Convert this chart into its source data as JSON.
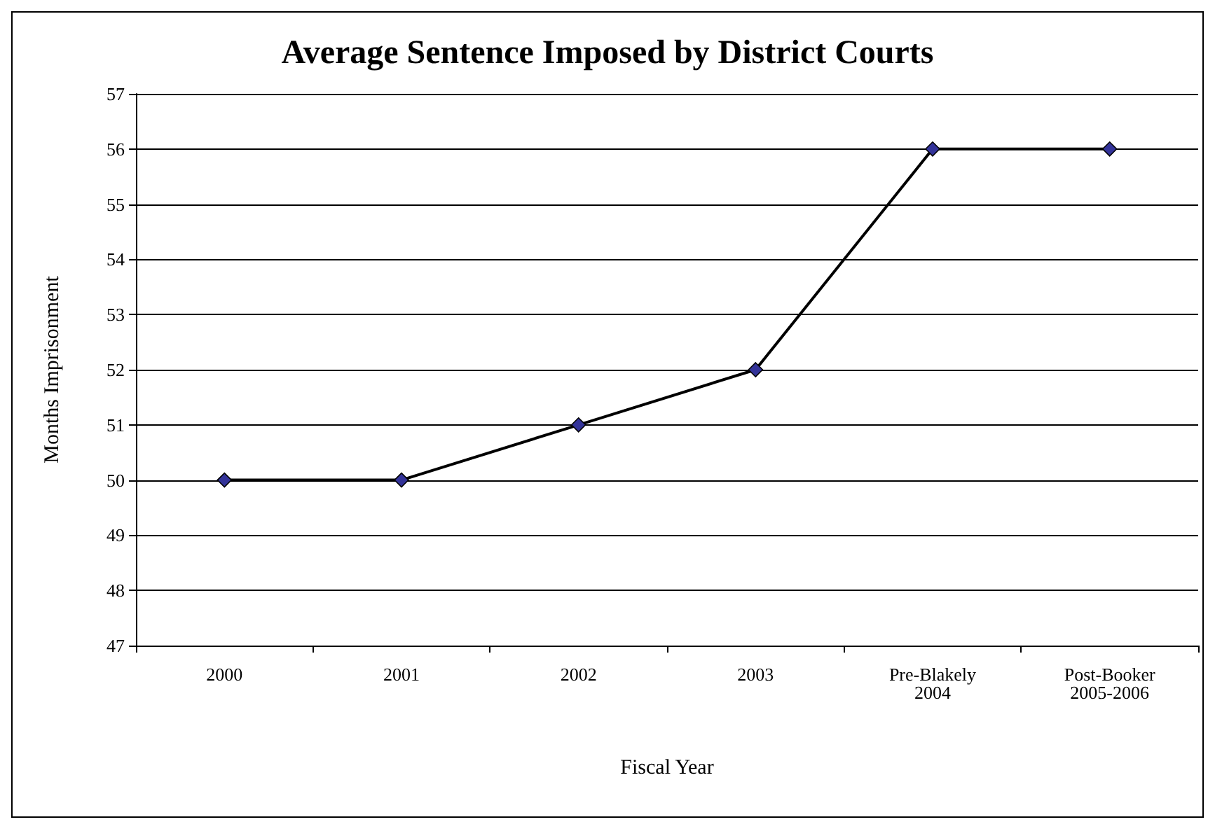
{
  "chart_data": {
    "type": "line",
    "title": "Average Sentence Imposed by District Courts",
    "xlabel": "Fiscal Year",
    "ylabel": "Months Imprisonment",
    "categories": [
      "2000",
      "2001",
      "2002",
      "2003",
      "Pre-Blakely\n2004",
      "Post-Booker\n2005-2006"
    ],
    "series": [
      {
        "color": "#333399",
        "values": [
          50,
          50,
          51,
          52,
          56,
          56
        ]
      }
    ],
    "ylim": [
      47,
      57
    ],
    "yticks": [
      47,
      48,
      49,
      50,
      51,
      52,
      53,
      54,
      55,
      56,
      57
    ],
    "grid": "y",
    "marker": "diamond",
    "line_style": "solid"
  }
}
